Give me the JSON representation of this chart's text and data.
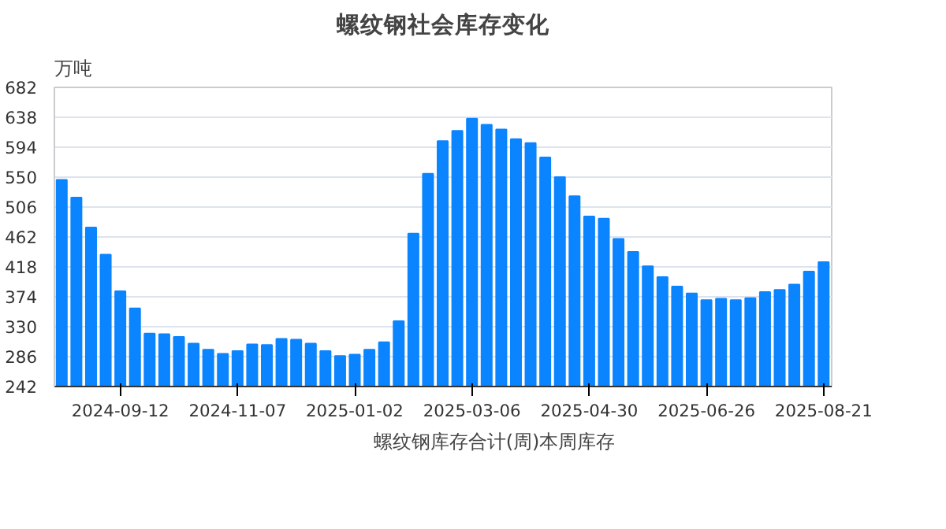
{
  "chart_data": {
    "type": "bar",
    "title": "螺纹钢社会库存变化",
    "ylabel": "万吨",
    "categories": [
      null,
      null,
      null,
      null,
      "2024-09-12",
      null,
      null,
      null,
      null,
      null,
      null,
      null,
      "2024-11-07",
      null,
      null,
      null,
      null,
      null,
      null,
      null,
      "2025-01-02",
      null,
      null,
      null,
      null,
      null,
      null,
      null,
      "2025-03-06",
      null,
      null,
      null,
      null,
      null,
      null,
      null,
      "2025-04-30",
      null,
      null,
      null,
      null,
      null,
      null,
      null,
      "2025-06-26",
      null,
      null,
      null,
      null,
      null,
      null,
      null,
      "2025-08-21"
    ],
    "series": [
      {
        "name": "螺纹钢库存合计(周)本周库存",
        "color": "#0a84ff",
        "values": [
          546,
          520,
          476,
          436,
          382,
          357,
          320,
          319,
          315,
          305,
          296,
          290,
          294,
          304,
          303,
          312,
          311,
          305,
          294,
          287,
          289,
          296,
          307,
          338,
          467,
          555,
          603,
          618,
          636,
          627,
          620,
          606,
          600,
          579,
          550,
          522,
          492,
          489,
          459,
          440,
          419,
          403,
          389,
          379,
          369,
          371,
          369,
          372,
          381,
          384,
          392,
          411,
          425
        ]
      }
    ],
    "ylim": [
      242,
      682
    ],
    "yticks": [
      242,
      286,
      330,
      374,
      418,
      462,
      506,
      550,
      594,
      638,
      682
    ],
    "grid": "y",
    "legend": "bottom"
  }
}
